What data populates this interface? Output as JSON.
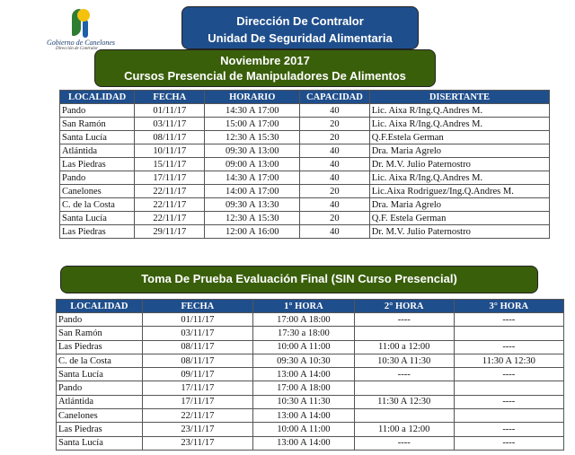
{
  "logo": {
    "name": "Gobierno de Canelones",
    "sub": "Dirección de Contralor"
  },
  "header": {
    "line1": "Dirección De Contralor",
    "line2": "Unidad De Seguridad Alimentaria"
  },
  "banner1": {
    "line1": "Noviembre 2017",
    "line2": "Cursos Presencial de Manipuladores De Alimentos"
  },
  "table1": {
    "headers": [
      "LOCALIDAD",
      "FECHA",
      "HORARIO",
      "CAPACIDAD",
      "DISERTANTE"
    ],
    "rows": [
      [
        "Pando",
        "01/11/17",
        "14:30 A 17:00",
        "40",
        "Lic. Aixa R/Ing.Q.Andres M."
      ],
      [
        "San Ramón",
        "03/11/17",
        "15:00 A 17:00",
        "20",
        "Lic. Aixa R/Ing.Q.Andres M."
      ],
      [
        "Santa Lucía",
        "08/11/17",
        "12:30 A 15:30",
        "20",
        "Q.F.Estela German"
      ],
      [
        "Atlántida",
        "10/11/17",
        "09:30 A 13:00",
        "40",
        "Dra. Maria Agrelo"
      ],
      [
        "Las Piedras",
        "15/11/17",
        "09:00 A 13:00",
        "40",
        "Dr. M.V. Julio Paternostro"
      ],
      [
        "Pando",
        "17/11/17",
        "14:30 A 17:00",
        "40",
        "Lic. Aixa R/Ing.Q.Andres M."
      ],
      [
        "Canelones",
        "22/11/17",
        "14:00 A 17:00",
        "20",
        "Lic.Aixa Rodriguez/Ing.Q.Andres M."
      ],
      [
        "C. de la Costa",
        "22/11/17",
        "09:30 A 13:30",
        "40",
        "Dra. Maria Agrelo"
      ],
      [
        "Santa Lucía",
        "22/11/17",
        "12:30 A 15:30",
        "20",
        "Q.F. Estela German"
      ],
      [
        "Las Piedras",
        "29/11/17",
        "12:00 A 16:00",
        "40",
        "Dr. M.V. Julio Paternostro"
      ]
    ]
  },
  "banner2": {
    "title": "Toma De Prueba Evaluación Final (SIN Curso Presencial)"
  },
  "table2": {
    "headers": [
      "LOCALIDAD",
      "FECHA",
      "1° HORA",
      "2° HORA",
      "3° HORA"
    ],
    "rows": [
      [
        "Pando",
        "01/11/17",
        "17:00 A 18:00",
        "----",
        "----"
      ],
      [
        "San Ramón",
        "03/11/17",
        "17:30 a 18:00",
        "",
        ""
      ],
      [
        "Las Piedras",
        "08/11/17",
        "10:00 A 11:00",
        "11:00 a 12:00",
        "----"
      ],
      [
        "C. de la Costa",
        "08/11/17",
        "09:30 A 10:30",
        "10:30 A 11:30",
        "11:30 A 12:30"
      ],
      [
        "Santa Lucía",
        "09/11/17",
        "13:00 A 14:00",
        "----",
        "----"
      ],
      [
        "Pando",
        "17/11/17",
        "17:00 A 18:00",
        "",
        ""
      ],
      [
        "Atlántida",
        "17/11/17",
        "10:30 A 11:30",
        "11:30 A 12:30",
        "----"
      ],
      [
        "Canelones",
        "22/11/17",
        "13:00 A 14:00",
        "",
        ""
      ],
      [
        "Las Piedras",
        "23/11/17",
        "10:00 A 11:00",
        "11:00 a 12:00",
        "----"
      ],
      [
        "Santa Lucía",
        "23/11/17",
        "13:00 A 14:00",
        "----",
        "----"
      ]
    ]
  },
  "colors": {
    "header_blue": "#1f4e8c",
    "banner_green": "#3a5f0b"
  }
}
